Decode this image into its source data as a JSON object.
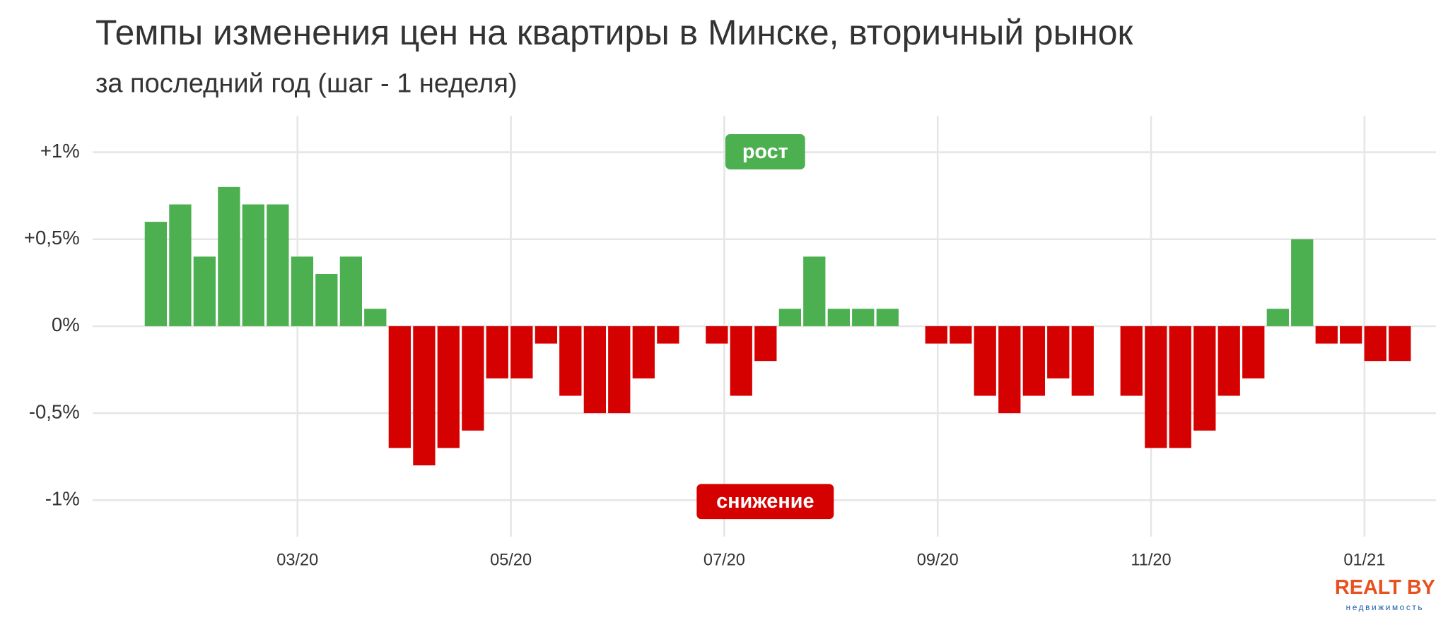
{
  "chart_data": {
    "type": "bar",
    "title": "Темпы изменения цен на квартиры в Минске, вторичный рынок",
    "subtitle": "за последний год (шаг - 1 неделя)",
    "x": [
      1.672,
      1.901,
      2.129,
      2.358,
      2.586,
      2.815,
      3.044,
      3.272,
      3.501,
      3.729,
      3.958,
      4.187,
      4.415,
      4.644,
      4.872,
      5.101,
      5.33,
      5.558,
      5.787,
      6.015,
      6.244,
      6.473,
      6.701,
      6.93,
      7.158,
      7.387,
      7.616,
      7.844,
      8.073,
      8.301,
      8.53,
      8.759,
      8.987,
      9.216,
      9.444,
      9.673,
      9.902,
      10.13,
      10.359,
      10.587,
      10.816,
      11.045,
      11.273,
      11.502,
      11.73,
      11.959,
      12.188,
      12.416,
      12.645,
      12.873,
      13.102,
      13.331
    ],
    "values": [
      0.6,
      0.7,
      0.4,
      0.8,
      0.7,
      0.7,
      0.4,
      0.3,
      0.4,
      0.1,
      -0.7,
      -0.8,
      -0.7,
      -0.6,
      -0.3,
      -0.3,
      -0.1,
      -0.4,
      -0.5,
      -0.5,
      -0.3,
      -0.1,
      null,
      -0.1,
      -0.4,
      -0.2,
      0.1,
      0.4,
      0.1,
      0.1,
      0.1,
      null,
      -0.1,
      -0.1,
      -0.4,
      -0.5,
      -0.4,
      -0.3,
      -0.4,
      null,
      -0.4,
      -0.7,
      -0.7,
      -0.6,
      -0.4,
      -0.3,
      0.1,
      0.5,
      -0.1,
      -0.1,
      -0.2,
      -0.2
    ],
    "positive_color": "#4caf50",
    "negative_color": "#d50000",
    "xlim": [
      1.08,
      13.67
    ],
    "xticks": [
      {
        "value": 3,
        "label": "03/20"
      },
      {
        "value": 5,
        "label": "05/20"
      },
      {
        "value": 7,
        "label": "07/20"
      },
      {
        "value": 9,
        "label": "09/20"
      },
      {
        "value": 11,
        "label": "11/20"
      },
      {
        "value": 13,
        "label": "01/21"
      }
    ],
    "ylim": [
      -1.21,
      1.21
    ],
    "yticks": [
      {
        "value": 1,
        "label": "+1%"
      },
      {
        "value": 0.5,
        "label": "+0,5%"
      },
      {
        "value": 0,
        "label": "0%"
      },
      {
        "value": -0.5,
        "label": "-0,5%"
      },
      {
        "value": -1,
        "label": "-1%"
      }
    ],
    "grid": true,
    "annotations": [
      "рост",
      "снижение"
    ]
  },
  "logo": {
    "name": "REALT BY",
    "tagline": "недвижимость"
  }
}
